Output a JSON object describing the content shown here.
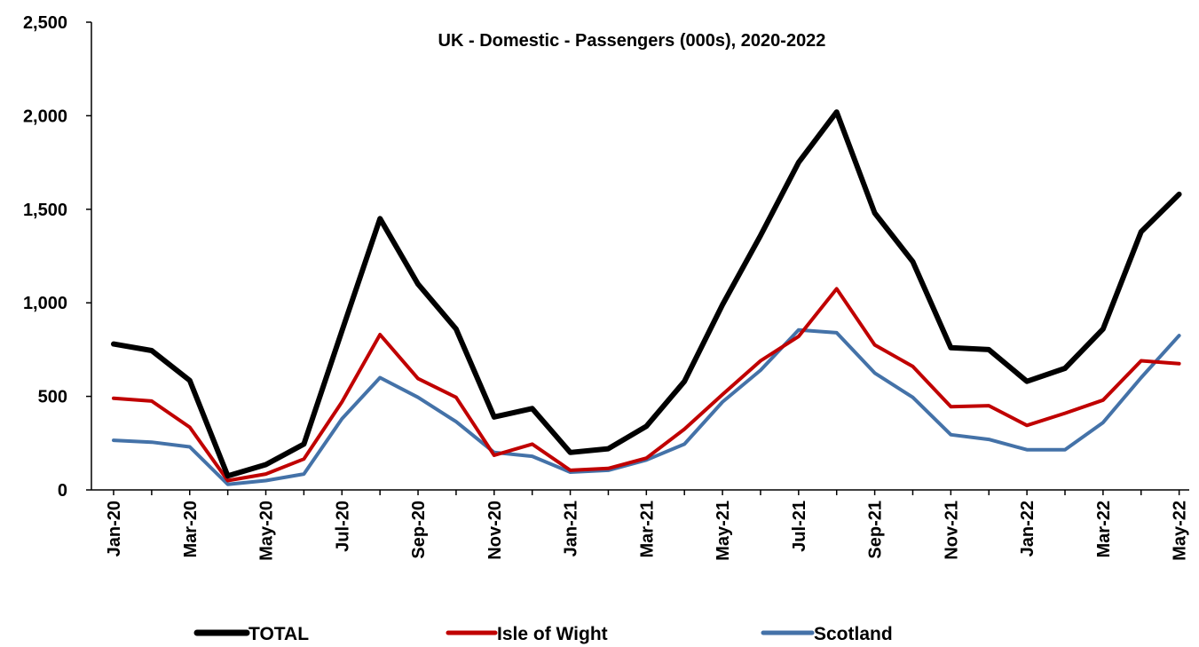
{
  "chart_data": {
    "type": "line",
    "title": "UK - Domestic - Passengers (000s), 2020-2022",
    "xlabel": "",
    "ylabel": "",
    "ylim": [
      0,
      2500
    ],
    "yticks": [
      0,
      500,
      1000,
      1500,
      2000,
      2500
    ],
    "ytick_labels": [
      "0",
      "500",
      "1,000",
      "1,500",
      "2,000",
      "2,500"
    ],
    "x": [
      "Jan-20",
      "Feb-20",
      "Mar-20",
      "Apr-20",
      "May-20",
      "Jun-20",
      "Jul-20",
      "Aug-20",
      "Sep-20",
      "Oct-20",
      "Nov-20",
      "Dec-20",
      "Jan-21",
      "Feb-21",
      "Mar-21",
      "Apr-21",
      "May-21",
      "Jun-21",
      "Jul-21",
      "Aug-21",
      "Sep-21",
      "Oct-21",
      "Nov-21",
      "Dec-21",
      "Jan-22",
      "Feb-22",
      "Mar-22",
      "Apr-22",
      "May-22"
    ],
    "xtick_labels": [
      "Jan-20",
      "Mar-20",
      "May-20",
      "Jul-20",
      "Sep-20",
      "Nov-20",
      "Jan-21",
      "Mar-21",
      "May-21",
      "Jul-21",
      "Sep-21",
      "Nov-21",
      "Jan-22",
      "Mar-22",
      "May-22"
    ],
    "grid": false,
    "legend_position": "bottom",
    "series": [
      {
        "name": "TOTAL",
        "color": "#000000",
        "values": [
          780,
          745,
          585,
          75,
          135,
          245,
          850,
          1450,
          1100,
          860,
          390,
          435,
          200,
          220,
          340,
          580,
          990,
          1360,
          1750,
          2020,
          1480,
          1220,
          760,
          750,
          580,
          650,
          860,
          1380,
          1580
        ]
      },
      {
        "name": "Isle of Wight",
        "color": "#c00000",
        "values": [
          490,
          475,
          335,
          50,
          85,
          165,
          470,
          830,
          595,
          495,
          185,
          245,
          105,
          115,
          170,
          325,
          510,
          690,
          820,
          1075,
          775,
          660,
          445,
          450,
          345,
          410,
          480,
          690,
          675
        ]
      },
      {
        "name": "Scotland",
        "color": "#4472a8",
        "values": [
          265,
          255,
          230,
          30,
          50,
          85,
          380,
          600,
          495,
          365,
          200,
          180,
          95,
          105,
          160,
          245,
          470,
          640,
          855,
          840,
          625,
          495,
          295,
          270,
          215,
          215,
          360,
          600,
          825
        ]
      }
    ]
  }
}
